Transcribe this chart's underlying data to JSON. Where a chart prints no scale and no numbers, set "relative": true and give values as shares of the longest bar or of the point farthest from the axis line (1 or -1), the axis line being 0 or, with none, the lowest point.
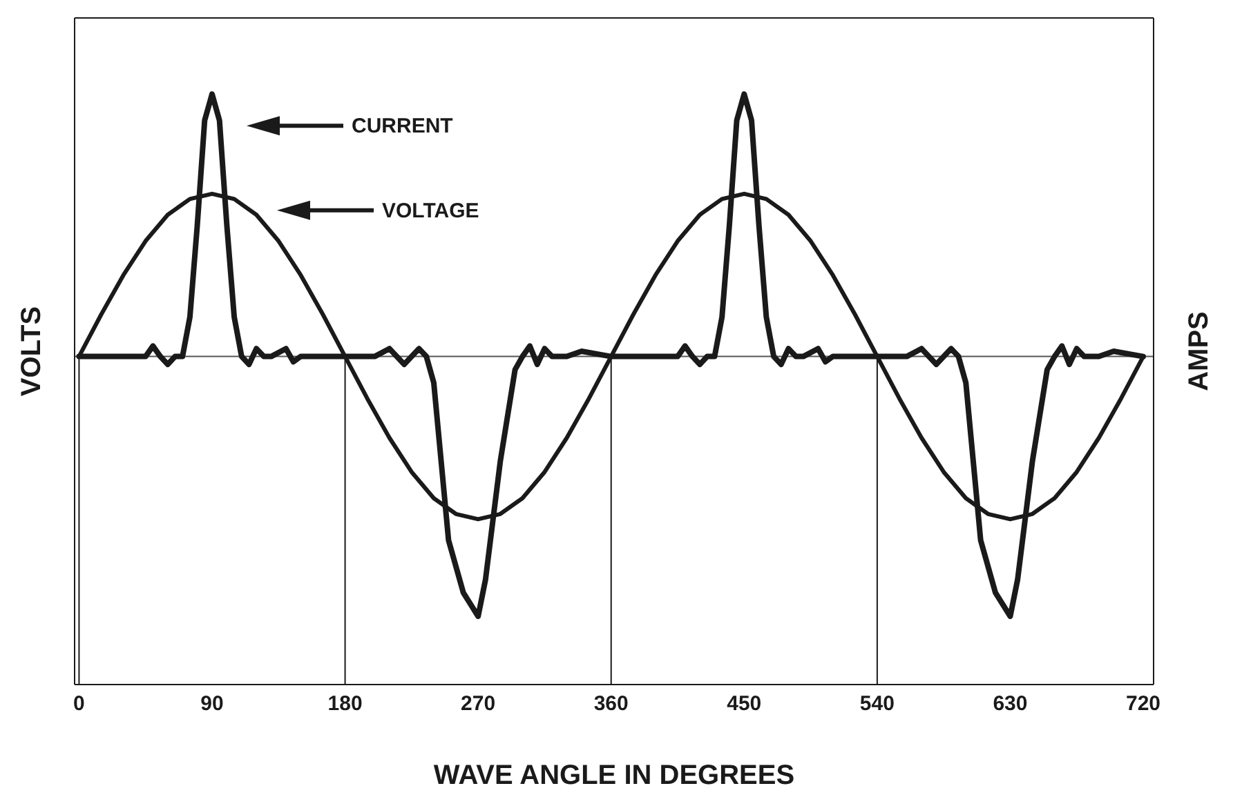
{
  "chart_data": {
    "type": "line",
    "relative": true,
    "xlabel": "WAVE ANGLE IN DEGREES",
    "ylabel": "VOLTS",
    "y2label": "AMPS",
    "xlim": [
      -3,
      727
    ],
    "xticks": [
      0,
      90,
      180,
      270,
      360,
      450,
      540,
      630,
      720
    ],
    "tick_labels": "x",
    "marker": "none",
    "line_style": "solid",
    "series": [
      {
        "color": "#1a1a1a",
        "x": [
          0,
          15,
          30,
          45,
          50,
          55,
          60,
          65,
          70,
          75,
          80,
          85,
          90,
          95,
          100,
          105,
          110,
          115,
          120,
          125,
          130,
          140,
          145,
          150,
          160,
          180,
          200,
          210,
          220,
          230,
          235,
          240,
          245,
          250,
          260,
          270,
          275,
          285,
          295,
          300,
          305,
          310,
          315,
          320,
          330,
          340,
          360,
          375,
          390,
          405,
          410,
          415,
          420,
          425,
          430,
          435,
          440,
          445,
          450,
          455,
          460,
          465,
          470,
          475,
          480,
          485,
          490,
          500,
          505,
          510,
          520,
          540,
          560,
          570,
          580,
          590,
          595,
          600,
          605,
          610,
          620,
          630,
          635,
          645,
          655,
          660,
          665,
          670,
          675,
          680,
          690,
          700,
          720
        ],
        "values": [
          0,
          0,
          0,
          0,
          0.04,
          0,
          -0.03,
          0,
          0,
          0.15,
          0.5,
          0.9,
          1,
          0.9,
          0.5,
          0.15,
          0,
          -0.03,
          0.03,
          0,
          0,
          0.03,
          -0.02,
          0,
          0,
          0,
          0,
          0.03,
          -0.03,
          0.03,
          0,
          -0.1,
          -0.4,
          -0.7,
          -0.9,
          -0.99,
          -0.85,
          -0.4,
          -0.05,
          0,
          0.04,
          -0.03,
          0.03,
          0,
          0,
          0.02,
          0,
          0,
          0,
          0,
          0.04,
          0,
          -0.03,
          0,
          0,
          0.15,
          0.5,
          0.9,
          1,
          0.9,
          0.5,
          0.15,
          0,
          -0.03,
          0.03,
          0,
          0,
          0.03,
          -0.02,
          0,
          0,
          0,
          0,
          0.03,
          -0.03,
          0.03,
          0,
          -0.1,
          -0.4,
          -0.7,
          -0.9,
          -0.99,
          -0.85,
          -0.4,
          -0.05,
          0,
          0.04,
          -0.03,
          0.03,
          0,
          0,
          0.02,
          0
        ]
      },
      {
        "color": "#1a1a1a",
        "x": [
          0,
          15,
          30,
          45,
          60,
          75,
          90,
          105,
          120,
          135,
          150,
          165,
          180,
          195,
          210,
          225,
          240,
          255,
          270,
          285,
          300,
          315,
          330,
          345,
          360,
          375,
          390,
          405,
          420,
          435,
          450,
          465,
          480,
          495,
          510,
          525,
          540,
          555,
          570,
          585,
          600,
          615,
          630,
          645,
          660,
          675,
          690,
          705,
          720
        ],
        "values": [
          0,
          0.16,
          0.31,
          0.44,
          0.54,
          0.6,
          0.62,
          0.6,
          0.54,
          0.44,
          0.31,
          0.16,
          0,
          -0.16,
          -0.31,
          -0.44,
          -0.54,
          -0.6,
          -0.62,
          -0.6,
          -0.54,
          -0.44,
          -0.31,
          -0.16,
          0,
          0.16,
          0.31,
          0.44,
          0.54,
          0.6,
          0.62,
          0.6,
          0.54,
          0.44,
          0.31,
          0.16,
          0,
          -0.16,
          -0.31,
          -0.44,
          -0.54,
          -0.6,
          -0.62,
          -0.6,
          -0.54,
          -0.44,
          -0.31,
          -0.16,
          0
        ]
      }
    ],
    "ref_lines": [
      {
        "axis": "x",
        "value": 0,
        "color": "#1a1a1a"
      },
      {
        "axis": "x",
        "value": 180,
        "color": "#1a1a1a"
      },
      {
        "axis": "x",
        "value": 360,
        "color": "#1a1a1a"
      },
      {
        "axis": "x",
        "value": 540,
        "color": "#1a1a1a"
      }
    ],
    "annotations": [
      "CURRENT",
      "VOLTAGE"
    ]
  }
}
